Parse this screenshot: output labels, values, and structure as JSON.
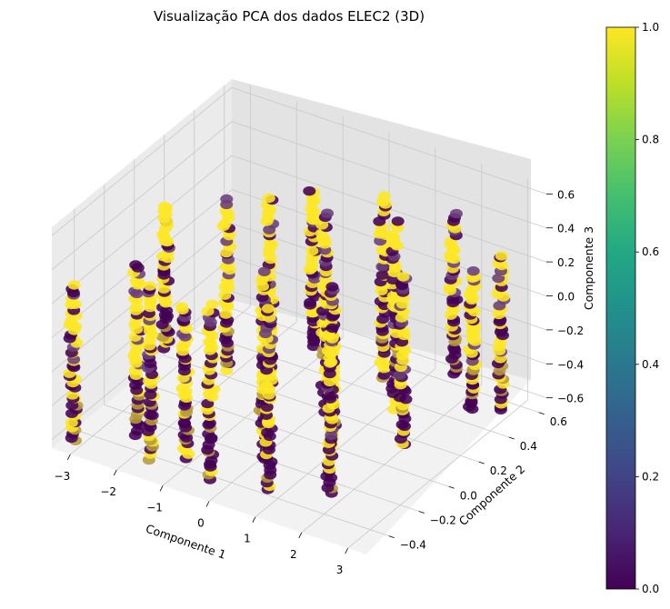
{
  "chart_data": {
    "type": "scatter",
    "projection": "3d",
    "title": "Visualização PCA dos dados ELEC2 (3D)",
    "xlabel": "Componente 1",
    "ylabel": "Componente 2",
    "zlabel": "Componente 3",
    "xlim": [
      -3.4,
      3.4
    ],
    "ylim": [
      -0.55,
      0.65
    ],
    "zlim": [
      -0.65,
      0.65
    ],
    "xticks": [
      "−3",
      "−2",
      "−1",
      "0",
      "1",
      "2",
      "3"
    ],
    "yticks": [
      "−0.4",
      "−0.2",
      "0.0",
      "0.2",
      "0.4",
      "0.6"
    ],
    "zticks": [
      "−0.6",
      "−0.4",
      "−0.2",
      "0.0",
      "0.2",
      "0.4",
      "0.6"
    ],
    "grid": true,
    "colormap": "viridis",
    "color_values": [
      0,
      1
    ],
    "colorbar": {
      "range": [
        0.0,
        1.0
      ],
      "ticks": [
        "0.0",
        "0.2",
        "0.4",
        "0.6",
        "0.8",
        "1.0"
      ]
    },
    "clusters": [
      {
        "x": -3.1,
        "y": -0.5,
        "z": [
          -0.62,
          0.3
        ]
      },
      {
        "x": -2.2,
        "y": -0.35,
        "z": [
          -0.6,
          0.4
        ]
      },
      {
        "x": -2.4,
        "y": -0.1,
        "z": [
          -0.3,
          0.55
        ]
      },
      {
        "x": -1.6,
        "y": -0.45,
        "z": [
          -0.62,
          0.4
        ]
      },
      {
        "x": -1.4,
        "y": 0.0,
        "z": [
          -0.4,
          0.6
        ]
      },
      {
        "x": -1.0,
        "y": -0.4,
        "z": [
          -0.6,
          0.3
        ]
      },
      {
        "x": -0.8,
        "y": 0.1,
        "z": [
          -0.5,
          0.6
        ]
      },
      {
        "x": -0.3,
        "y": -0.45,
        "z": [
          -0.62,
          0.4
        ]
      },
      {
        "x": -0.2,
        "y": 0.2,
        "z": [
          -0.3,
          0.62
        ]
      },
      {
        "x": 0.2,
        "y": -0.25,
        "z": [
          -0.6,
          0.5
        ]
      },
      {
        "x": 0.4,
        "y": 0.1,
        "z": [
          -0.55,
          0.6
        ]
      },
      {
        "x": 0.8,
        "y": -0.4,
        "z": [
          -0.62,
          0.45
        ]
      },
      {
        "x": 1.0,
        "y": 0.3,
        "z": [
          -0.45,
          0.62
        ]
      },
      {
        "x": 1.2,
        "y": -0.1,
        "z": [
          -0.55,
          0.4
        ]
      },
      {
        "x": 1.6,
        "y": 0.2,
        "z": [
          -0.5,
          0.6
        ]
      },
      {
        "x": 1.8,
        "y": -0.3,
        "z": [
          -0.62,
          0.35
        ]
      },
      {
        "x": 2.2,
        "y": 0.4,
        "z": [
          -0.4,
          0.55
        ]
      },
      {
        "x": 2.4,
        "y": 0.0,
        "z": [
          -0.5,
          0.5
        ]
      },
      {
        "x": 2.9,
        "y": 0.5,
        "z": [
          -0.62,
          0.3
        ]
      },
      {
        "x": 3.1,
        "y": 0.25,
        "z": [
          -0.4,
          0.4
        ]
      }
    ],
    "colors": {
      "low": "#440154",
      "mid": "#6a3f7a",
      "high": "#fde725",
      "olive": "#b59a3a",
      "pane_left": "#ebebeb",
      "pane_right": "#e3e3e3",
      "pane_floor": "#f2f2f2",
      "grid": "#c8c8c8"
    }
  }
}
